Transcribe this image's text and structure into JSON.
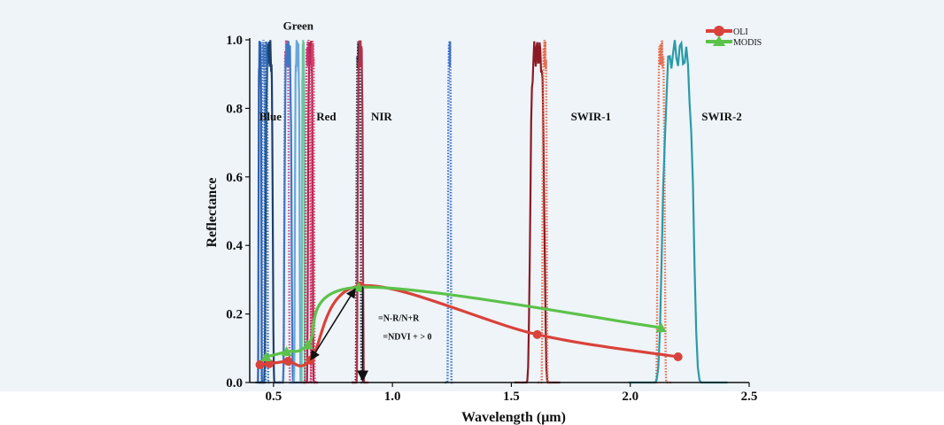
{
  "chart_data": {
    "type": "line",
    "title": "",
    "xlabel": "Wavelength (μm)",
    "ylabel": "Reflectance",
    "xlim": [
      0.4,
      2.5
    ],
    "ylim": [
      0.0,
      1.0
    ],
    "x_ticks": [
      "0.5",
      "1.0",
      "1.5",
      "2.0",
      "2.5"
    ],
    "y_ticks": [
      "0.0",
      "0.2",
      "0.4",
      "0.6",
      "0.8",
      "1.0"
    ],
    "grid": false,
    "legend_position": "top-right",
    "series": [
      {
        "name": "OLI",
        "color": "#d9423a",
        "marker": "circle",
        "x": [
          0.443,
          0.482,
          0.561,
          0.655,
          0.865,
          1.609,
          2.201
        ],
        "y": [
          0.052,
          0.055,
          0.062,
          0.065,
          0.282,
          0.14,
          0.075
        ]
      },
      {
        "name": "MODIS",
        "color": "#5cc24a",
        "marker": "triangle",
        "x": [
          0.469,
          0.555,
          0.645,
          0.858,
          2.13
        ],
        "y": [
          0.075,
          0.09,
          0.11,
          0.278,
          0.16
        ]
      }
    ],
    "band_responses": [
      {
        "center": 0.443,
        "width": 0.012,
        "color": "#2e5fa8",
        "style": "solid"
      },
      {
        "center": 0.458,
        "width": 0.012,
        "color": "#3b6fc8",
        "style": "dotted"
      },
      {
        "center": 0.482,
        "width": 0.03,
        "color": "#1f3f6a",
        "style": "solid"
      },
      {
        "center": 0.469,
        "width": 0.012,
        "color": "#2b6cb0",
        "style": "dotted"
      },
      {
        "center": 0.555,
        "width": 0.02,
        "color": "#c04a8a",
        "style": "dotted"
      },
      {
        "center": 0.561,
        "width": 0.03,
        "color": "#3d78c4",
        "style": "solid"
      },
      {
        "center": 0.6,
        "width": 0.02,
        "color": "#6aa7d8",
        "style": "solid"
      },
      {
        "center": 0.625,
        "width": 0.01,
        "color": "#6cc4a0",
        "style": "solid"
      },
      {
        "center": 0.655,
        "width": 0.02,
        "color": "#b0244a",
        "style": "solid"
      },
      {
        "center": 0.665,
        "width": 0.012,
        "color": "#d8406a",
        "style": "dotted"
      },
      {
        "center": 0.645,
        "width": 0.02,
        "color": "#c8306a",
        "style": "dotted"
      },
      {
        "center": 0.858,
        "width": 0.018,
        "color": "#1b2a3a",
        "style": "dotted"
      },
      {
        "center": 0.865,
        "width": 0.022,
        "color": "#b0304a",
        "style": "solid"
      },
      {
        "center": 1.24,
        "width": 0.012,
        "color": "#3a6fc8",
        "style": "dotted"
      },
      {
        "center": 1.609,
        "width": 0.06,
        "color": "#8b1a24",
        "style": "solid"
      },
      {
        "center": 1.64,
        "width": 0.018,
        "color": "#e46a4a",
        "style": "dotted"
      },
      {
        "center": 2.13,
        "width": 0.03,
        "color": "#e46a4a",
        "style": "dotted"
      },
      {
        "center": 2.201,
        "width": 0.13,
        "color": "#2a9aa8",
        "style": "solid"
      }
    ],
    "band_labels": [
      {
        "text": "Blue",
        "x": 0.44,
        "y": 0.765
      },
      {
        "text": "Green",
        "x": 0.54,
        "y": 1.03
      },
      {
        "text": "Red",
        "x": 0.68,
        "y": 0.765
      },
      {
        "text": "NIR",
        "x": 0.91,
        "y": 0.765
      },
      {
        "text": "SWIR-1",
        "x": 1.75,
        "y": 0.765
      },
      {
        "text": "SWIR-2",
        "x": 2.3,
        "y": 0.765
      }
    ],
    "annotations": [
      {
        "text": "=N-R/N+R",
        "x": 0.94,
        "y": 0.18
      },
      {
        "text": "=NDVI + > 0",
        "x": 0.96,
        "y": 0.125
      }
    ]
  }
}
